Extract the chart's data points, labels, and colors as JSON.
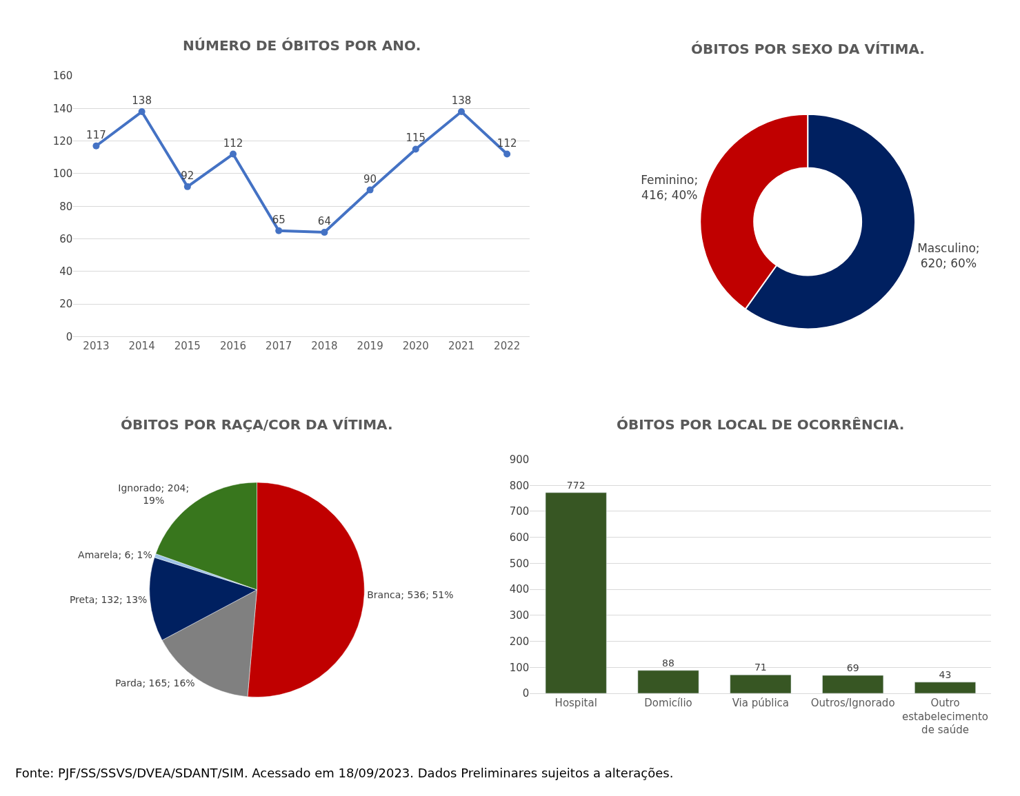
{
  "chart_data": [
    {
      "type": "line",
      "title": "NÚMERO DE ÓBITOS POR ANO.",
      "categories": [
        "2013",
        "2014",
        "2015",
        "2016",
        "2017",
        "2018",
        "2019",
        "2020",
        "2021",
        "2022"
      ],
      "values": [
        117,
        138,
        92,
        112,
        65,
        64,
        90,
        115,
        138,
        112
      ],
      "color": "#4472c4",
      "ylim": [
        0,
        160
      ],
      "yticks": [
        0,
        20,
        40,
        60,
        80,
        100,
        120,
        140,
        160
      ],
      "grid": "y",
      "marker": "circle",
      "line_style": "solid",
      "data_labels": true
    },
    {
      "type": "donut",
      "title": "ÓBITOS POR SEXO DA VÍTIMA.",
      "categories": [
        "Masculino",
        "Feminino"
      ],
      "values": [
        620,
        416
      ],
      "colors": [
        "#002060",
        "#c00000"
      ],
      "value_labels": [
        ";\n620; 60%",
        ";\n416; 40%"
      ]
    },
    {
      "type": "pie",
      "title": "ÓBITOS POR RAÇA/COR DA VÍTIMA.",
      "categories": [
        "Branca",
        "Parda",
        "Preta",
        "Amarela",
        "Ignorado"
      ],
      "values": [
        536,
        165,
        132,
        6,
        204
      ],
      "colors": [
        "#c00000",
        "#808080",
        "#002060",
        "#9dc3e6",
        "#38761d"
      ],
      "value_labels": [
        "; 536; 51%",
        "; 165; 16%",
        "; 132; 13%",
        "; 6; 1%",
        "; 204;\n19%"
      ]
    },
    {
      "type": "bar",
      "title": "ÓBITOS POR LOCAL DE OCORRÊNCIA.",
      "categories": [
        "Hospital",
        "Domicílio",
        "Via pública",
        "Outros/Ignorado",
        "Outro estabelecimento de saúde"
      ],
      "values": [
        772,
        88,
        71,
        69,
        43
      ],
      "color": "#375623",
      "ylim": [
        0,
        900
      ],
      "yticks": [
        0,
        100,
        200,
        300,
        400,
        500,
        600,
        700,
        800,
        900
      ],
      "grid": "y",
      "data_labels": true,
      "annotations": [
        "Fonte: PJF/SS/SSVS/DVEA/SDANT/SIM. Acessado em 18/09/2023. Dados Preliminares sujeitos a alterações."
      ]
    }
  ]
}
